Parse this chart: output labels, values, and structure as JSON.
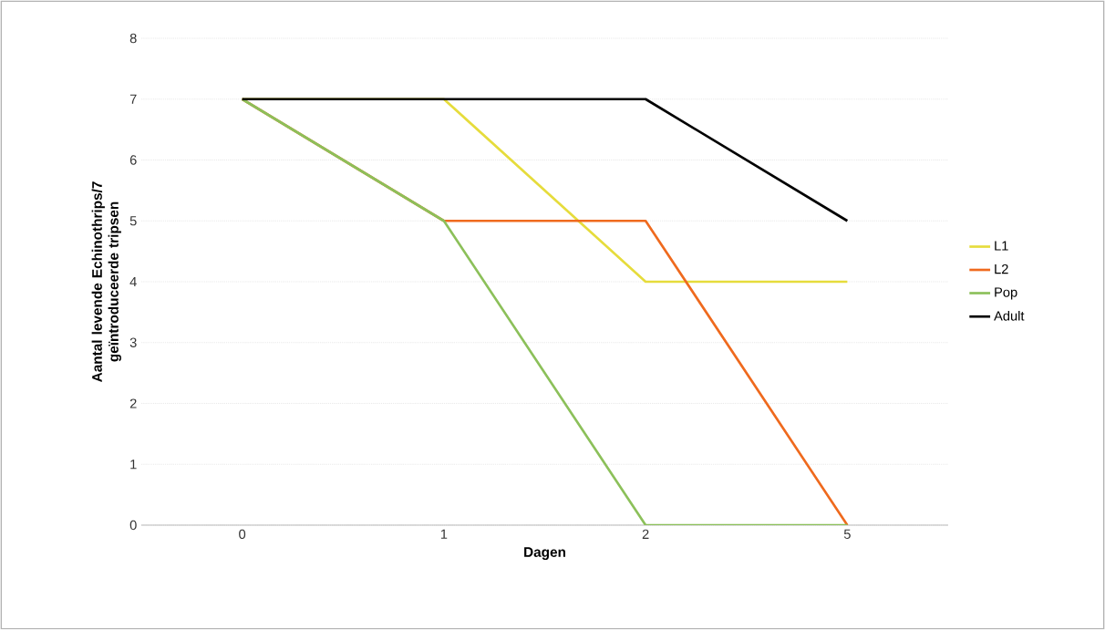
{
  "chart_data": {
    "type": "line",
    "xlabel": "Dagen",
    "ylabel": "Aantal levende Echinothrips/7 geïntroduceerde tripsen",
    "categories": [
      "0",
      "1",
      "2",
      "5"
    ],
    "series": [
      {
        "name": "L1",
        "color": "#e6dc3c",
        "values": [
          7,
          7,
          4,
          4
        ]
      },
      {
        "name": "L2",
        "color": "#ef6a1e",
        "values": [
          7,
          5,
          5,
          0
        ]
      },
      {
        "name": "Pop",
        "color": "#8cc05a",
        "values": [
          7,
          5,
          0,
          0
        ]
      },
      {
        "name": "Adult",
        "color": "#000000",
        "values": [
          7,
          7,
          7,
          5
        ]
      }
    ],
    "ylim": [
      0,
      8
    ],
    "yticks": [
      0,
      1,
      2,
      3,
      4,
      5,
      6,
      7,
      8
    ],
    "grid": "y",
    "legend": "right",
    "marker": "none",
    "line_style": "solid"
  }
}
